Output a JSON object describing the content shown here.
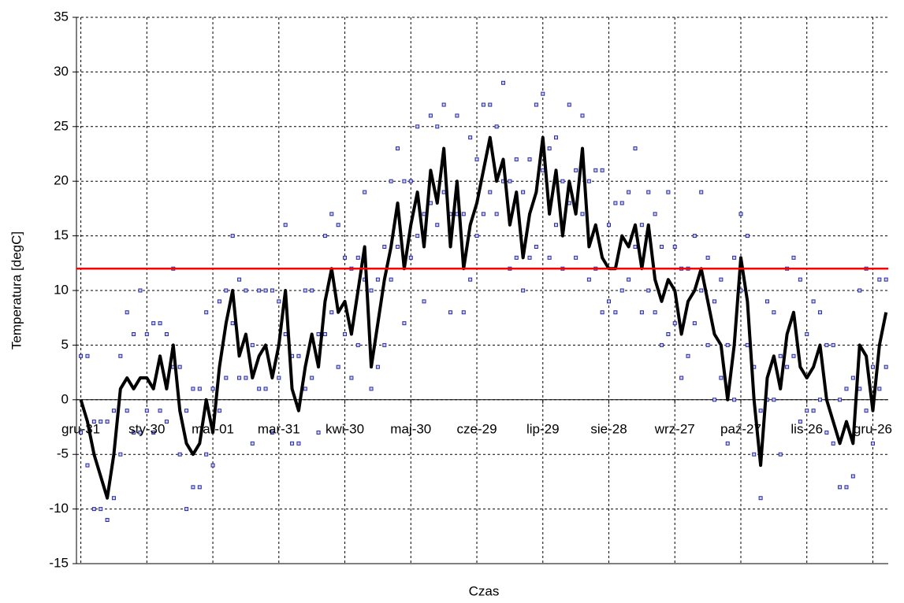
{
  "chart_data": {
    "type": "scatter",
    "xlabel": "Czas",
    "ylabel": "Temperatura [degC]",
    "xlim": [
      -2,
      367
    ],
    "ylim": [
      -15,
      35
    ],
    "xticks": [
      {
        "value": 0,
        "label": "gru-31"
      },
      {
        "value": 30,
        "label": "sty-30"
      },
      {
        "value": 60,
        "label": "mar-01"
      },
      {
        "value": 90,
        "label": "mar-31"
      },
      {
        "value": 120,
        "label": "kwi-30"
      },
      {
        "value": 150,
        "label": "maj-30"
      },
      {
        "value": 180,
        "label": "cze-29"
      },
      {
        "value": 210,
        "label": "lip-29"
      },
      {
        "value": 240,
        "label": "sie-28"
      },
      {
        "value": 270,
        "label": "wrz-27"
      },
      {
        "value": 300,
        "label": "paź-27"
      },
      {
        "value": 330,
        "label": "lis-26"
      },
      {
        "value": 360,
        "label": "gru-26"
      }
    ],
    "yticks": [
      -15,
      -10,
      -5,
      0,
      5,
      10,
      15,
      20,
      25,
      30,
      35
    ],
    "grid": true,
    "threshold": 12,
    "threshold_color": "#ff0000",
    "x": [
      0,
      3,
      6,
      9,
      12,
      15,
      18,
      21,
      24,
      27,
      30,
      33,
      36,
      39,
      42,
      45,
      48,
      51,
      54,
      57,
      60,
      63,
      66,
      69,
      72,
      75,
      78,
      81,
      84,
      87,
      90,
      93,
      96,
      99,
      102,
      105,
      108,
      111,
      114,
      117,
      120,
      123,
      126,
      129,
      132,
      135,
      138,
      141,
      144,
      147,
      150,
      153,
      156,
      159,
      162,
      165,
      168,
      171,
      174,
      177,
      180,
      183,
      186,
      189,
      192,
      195,
      198,
      201,
      204,
      207,
      210,
      213,
      216,
      219,
      222,
      225,
      228,
      231,
      234,
      237,
      240,
      243,
      246,
      249,
      252,
      255,
      258,
      261,
      264,
      267,
      270,
      273,
      276,
      279,
      282,
      285,
      288,
      291,
      294,
      297,
      300,
      303,
      306,
      309,
      312,
      315,
      318,
      321,
      324,
      327,
      330,
      333,
      336,
      339,
      342,
      345,
      348,
      351,
      354,
      357,
      360,
      363,
      366
    ],
    "series": [
      {
        "style": "markers",
        "color": "#2a2a9a",
        "values": [
          4,
          4,
          -2,
          -2,
          -2,
          -1,
          4,
          8,
          6,
          10,
          6,
          7,
          7,
          6,
          12,
          3,
          -1,
          1,
          1,
          8,
          1,
          9,
          10,
          15,
          11,
          10,
          5,
          10,
          10,
          10,
          9,
          16,
          4,
          4,
          10,
          10,
          6,
          15,
          17,
          16,
          13,
          12,
          13,
          19,
          10,
          11,
          14,
          20,
          23,
          20,
          20,
          25,
          17,
          26,
          25,
          27,
          17,
          26,
          17,
          24,
          22,
          27,
          27,
          25,
          29,
          20,
          22,
          19,
          22,
          27,
          28,
          23,
          24,
          20,
          27,
          21,
          26,
          20,
          21,
          21,
          16,
          18,
          18,
          19,
          23,
          16,
          19,
          17,
          14,
          19,
          14,
          12,
          12,
          15,
          19,
          13,
          9,
          11,
          5,
          13,
          17,
          15,
          3,
          -1,
          9,
          8,
          4,
          12,
          13,
          11,
          6,
          9,
          8,
          5,
          5,
          0,
          1,
          2,
          10,
          12,
          3,
          11,
          11
        ]
      },
      {
        "style": "markers",
        "color": "#2a2a9a",
        "values": [
          -3,
          -6,
          -10,
          -10,
          -11,
          -9,
          -5,
          -1,
          -3,
          -3,
          -1,
          -3,
          -1,
          -2,
          3,
          -5,
          -10,
          -8,
          -8,
          -5,
          -6,
          -1,
          2,
          7,
          2,
          2,
          -4,
          1,
          1,
          -3,
          2,
          6,
          -4,
          -4,
          1,
          2,
          -3,
          6,
          8,
          3,
          6,
          2,
          5,
          11,
          1,
          3,
          5,
          11,
          14,
          7,
          13,
          15,
          9,
          18,
          16,
          19,
          8,
          17,
          8,
          11,
          15,
          17,
          19,
          17,
          20,
          12,
          13,
          10,
          13,
          14,
          21,
          13,
          16,
          12,
          18,
          13,
          17,
          11,
          12,
          8,
          9,
          8,
          10,
          11,
          14,
          8,
          10,
          8,
          5,
          6,
          7,
          2,
          4,
          7,
          10,
          5,
          0,
          2,
          -4,
          0,
          10,
          5,
          -5,
          -9,
          0,
          0,
          -5,
          3,
          4,
          -2,
          -1,
          -1,
          0,
          -3,
          -4,
          -8,
          -8,
          -7,
          1,
          -1,
          -4,
          1,
          3
        ]
      },
      {
        "style": "line",
        "color": "#000000",
        "values": [
          0,
          -2,
          -5,
          -7,
          -9,
          -5,
          1,
          2,
          1,
          2,
          2,
          1,
          4,
          1,
          5,
          -1,
          -4,
          -5,
          -4,
          0,
          -3,
          3,
          7,
          10,
          4,
          6,
          2,
          4,
          5,
          2,
          5,
          10,
          1,
          -1,
          3,
          6,
          3,
          9,
          12,
          8,
          9,
          6,
          10,
          14,
          3,
          7,
          11,
          14,
          18,
          12,
          16,
          19,
          14,
          21,
          18,
          23,
          14,
          20,
          12,
          16,
          18,
          21,
          24,
          20,
          22,
          16,
          19,
          13,
          17,
          19,
          24,
          17,
          21,
          15,
          20,
          17,
          23,
          14,
          16,
          13,
          12,
          12,
          15,
          14,
          16,
          12,
          16,
          11,
          9,
          11,
          10,
          6,
          9,
          10,
          12,
          9,
          6,
          5,
          0,
          5,
          13,
          9,
          0,
          -6,
          2,
          4,
          1,
          6,
          8,
          3,
          2,
          3,
          5,
          0,
          -2,
          -4,
          -2,
          -4,
          5,
          4,
          -1,
          5,
          8
        ]
      }
    ]
  }
}
